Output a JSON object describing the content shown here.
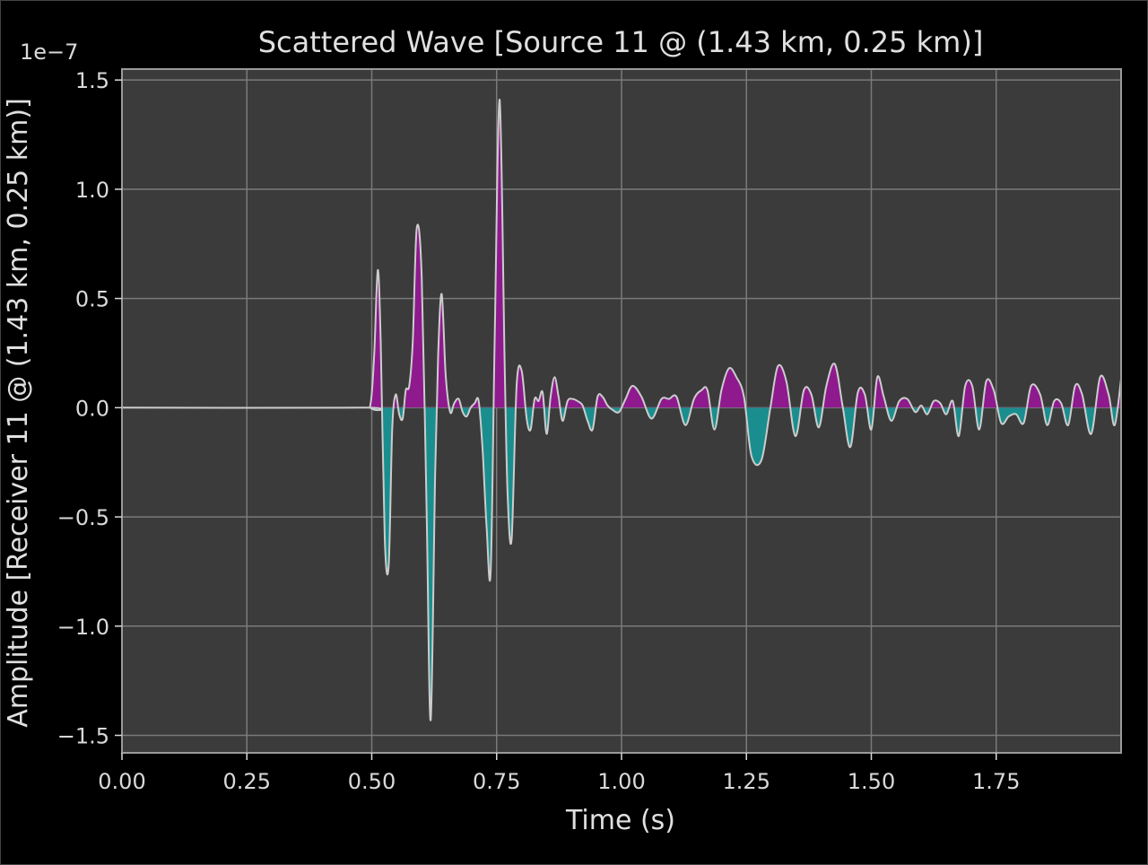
{
  "chart_data": {
    "type": "line",
    "title": "Scattered Wave [Source 11 @ (1.43 km, 0.25 km)]",
    "xlabel": "Time (s)",
    "ylabel": "Amplitude [Receiver 11 @ (1.43 km, 0.25 km)]",
    "y_offset_label": "1e−7",
    "xlim": [
      0.0,
      2.0
    ],
    "ylim": [
      -1.58,
      1.55
    ],
    "xticks": [
      {
        "value": 0.0,
        "label": "0.00"
      },
      {
        "value": 0.25,
        "label": "0.25"
      },
      {
        "value": 0.5,
        "label": "0.50"
      },
      {
        "value": 0.75,
        "label": "0.75"
      },
      {
        "value": 1.0,
        "label": "1.00"
      },
      {
        "value": 1.25,
        "label": "1.25"
      },
      {
        "value": 1.5,
        "label": "1.50"
      },
      {
        "value": 1.75,
        "label": "1.75"
      }
    ],
    "yticks": [
      {
        "value": 1.5,
        "label": "1.5"
      },
      {
        "value": 1.0,
        "label": "1.0"
      },
      {
        "value": 0.5,
        "label": "0.5"
      },
      {
        "value": 0.0,
        "label": "0.0"
      },
      {
        "value": -0.5,
        "label": "−0.5"
      },
      {
        "value": -1.0,
        "label": "−1.0"
      },
      {
        "value": -1.5,
        "label": "−1.5"
      }
    ],
    "grid": true,
    "series": [
      {
        "color": "#cccccc",
        "fill_positive": "#8e1a8e",
        "fill_negative": "#1a8e8e",
        "x": [
          0.0,
          0.48,
          0.497,
          0.505,
          0.512,
          0.518,
          0.526,
          0.534,
          0.541,
          0.548,
          0.555,
          0.562,
          0.568,
          0.575,
          0.582,
          0.59,
          0.6,
          0.61,
          0.618,
          0.627,
          0.633,
          0.64,
          0.648,
          0.657,
          0.665,
          0.674,
          0.682,
          0.69,
          0.698,
          0.706,
          0.714,
          0.722,
          0.73,
          0.738,
          0.746,
          0.756,
          0.766,
          0.772,
          0.78,
          0.79,
          0.8,
          0.81,
          0.818,
          0.826,
          0.834,
          0.842,
          0.85,
          0.858,
          0.866,
          0.874,
          0.882,
          0.892,
          0.902,
          0.912,
          0.922,
          0.932,
          0.942,
          0.952,
          0.962,
          0.972,
          0.982,
          0.995,
          1.008,
          1.022,
          1.04,
          1.06,
          1.08,
          1.095,
          1.11,
          1.128,
          1.145,
          1.16,
          1.172,
          1.186,
          1.2,
          1.215,
          1.23,
          1.245,
          1.26,
          1.28,
          1.298,
          1.313,
          1.33,
          1.348,
          1.365,
          1.38,
          1.395,
          1.41,
          1.427,
          1.443,
          1.458,
          1.473,
          1.487,
          1.5,
          1.512,
          1.525,
          1.54,
          1.556,
          1.572,
          1.588,
          1.6,
          1.612,
          1.625,
          1.638,
          1.65,
          1.663,
          1.675,
          1.688,
          1.702,
          1.716,
          1.73,
          1.745,
          1.76,
          1.775,
          1.79,
          1.805,
          1.82,
          1.838,
          1.852,
          1.866,
          1.88,
          1.894,
          1.908,
          1.922,
          1.94,
          1.958,
          1.975,
          1.987,
          2.0
        ],
        "y": [
          0.0,
          0.0,
          0.01,
          0.25,
          0.63,
          0.3,
          -0.6,
          -0.72,
          -0.1,
          0.06,
          -0.03,
          -0.05,
          0.08,
          0.1,
          0.3,
          0.82,
          0.6,
          -0.5,
          -1.43,
          -0.3,
          0.25,
          0.52,
          0.15,
          -0.02,
          0.02,
          0.04,
          -0.02,
          -0.04,
          0.0,
          0.02,
          0.03,
          -0.2,
          -0.55,
          -0.75,
          0.3,
          1.41,
          0.2,
          -0.4,
          -0.6,
          0.1,
          0.17,
          -0.05,
          -0.1,
          0.04,
          0.03,
          0.07,
          -0.12,
          0.05,
          0.14,
          0.05,
          -0.06,
          0.03,
          0.04,
          0.03,
          0.01,
          -0.06,
          -0.1,
          0.05,
          0.05,
          0.01,
          -0.01,
          -0.02,
          0.04,
          0.1,
          0.05,
          -0.05,
          0.04,
          0.04,
          0.05,
          -0.08,
          0.04,
          0.08,
          0.08,
          -0.1,
          0.08,
          0.18,
          0.14,
          0.05,
          -0.22,
          -0.24,
          0.0,
          0.19,
          0.12,
          -0.13,
          0.08,
          0.06,
          -0.09,
          0.1,
          0.2,
          0.0,
          -0.18,
          0.07,
          0.06,
          -0.1,
          0.14,
          0.05,
          -0.06,
          0.03,
          0.04,
          -0.02,
          0.01,
          -0.03,
          0.03,
          0.02,
          -0.03,
          0.03,
          -0.13,
          0.1,
          0.1,
          -0.1,
          0.12,
          0.08,
          -0.07,
          -0.04,
          -0.03,
          -0.07,
          0.1,
          0.06,
          -0.08,
          0.03,
          0.02,
          -0.08,
          0.1,
          0.06,
          -0.12,
          0.14,
          0.06,
          -0.08,
          0.13
        ]
      }
    ]
  }
}
